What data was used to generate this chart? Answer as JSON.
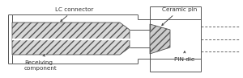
{
  "line_color": "#555555",
  "hatch_color": "#888888",
  "text_color": "#333333",
  "font_size": 5.2,
  "lc_connector_label": "LC connector",
  "receiving_label": "Receiving\ncomponent",
  "ceramic_pin_label": "Ceramic pin",
  "pin_die_label": "PIN die",
  "fig_w": 3.0,
  "fig_h": 0.97,
  "dpi": 100
}
